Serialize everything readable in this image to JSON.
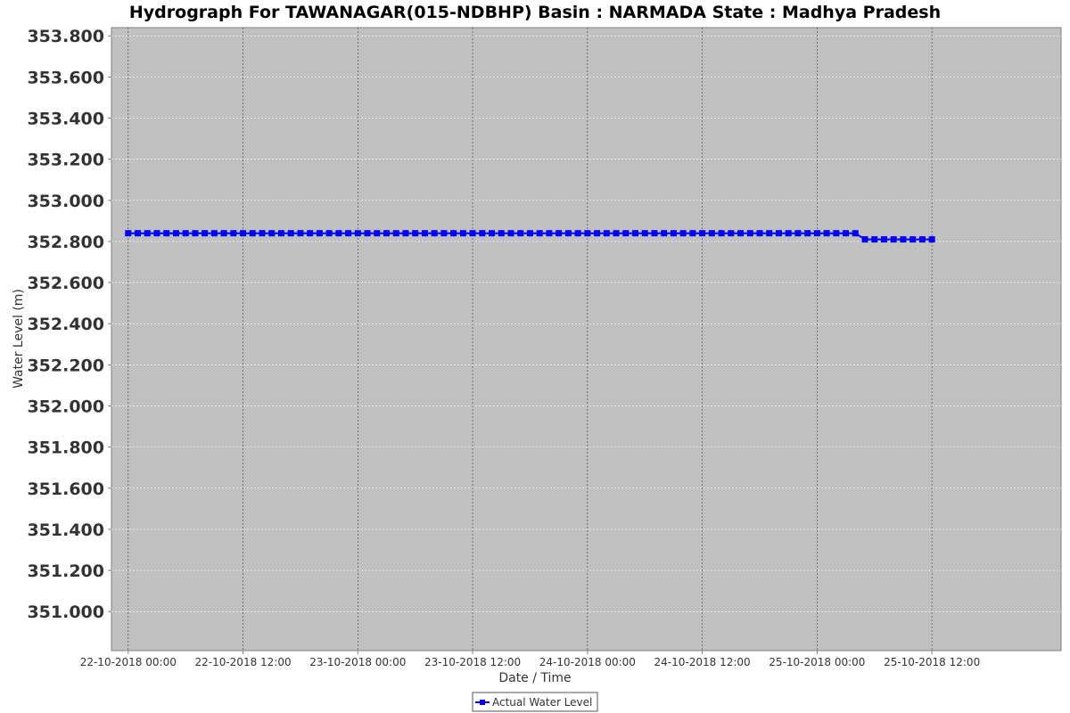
{
  "chart_data": {
    "type": "line",
    "title": "Hydrograph For TAWANAGAR(015-NDBHP) Basin : NARMADA State : Madhya Pradesh",
    "xlabel": "Date / Time",
    "ylabel": "Water Level (m)",
    "y_ticks": [
      "353.800",
      "353.600",
      "353.400",
      "353.200",
      "353.000",
      "352.800",
      "352.600",
      "352.400",
      "352.200",
      "352.000",
      "351.800",
      "351.600",
      "351.400",
      "351.200",
      "351.000"
    ],
    "x_ticks": [
      "22-10-2018 00:00",
      "22-10-2018 12:00",
      "23-10-2018 00:00",
      "23-10-2018 12:00",
      "24-10-2018 00:00",
      "24-10-2018 12:00",
      "25-10-2018 00:00",
      "25-10-2018 12:00"
    ],
    "ylim": [
      350.81,
      353.84
    ],
    "xlim": [
      "21-10-2018 22:15",
      "26-10-2018 01:30"
    ],
    "grid": true,
    "legend_position": "bottom",
    "series": [
      {
        "name": "Actual Water Level",
        "color": "#0000ff",
        "marker": "square",
        "x_start": "22-10-2018 00:00",
        "x_end": "25-10-2018 12:00",
        "interval_hours": 1,
        "values": [
          352.84,
          352.84,
          352.84,
          352.84,
          352.84,
          352.84,
          352.84,
          352.84,
          352.84,
          352.84,
          352.84,
          352.84,
          352.84,
          352.84,
          352.84,
          352.84,
          352.84,
          352.84,
          352.84,
          352.84,
          352.84,
          352.84,
          352.84,
          352.84,
          352.84,
          352.84,
          352.84,
          352.84,
          352.84,
          352.84,
          352.84,
          352.84,
          352.84,
          352.84,
          352.84,
          352.84,
          352.84,
          352.84,
          352.84,
          352.84,
          352.84,
          352.84,
          352.84,
          352.84,
          352.84,
          352.84,
          352.84,
          352.84,
          352.84,
          352.84,
          352.84,
          352.84,
          352.84,
          352.84,
          352.84,
          352.84,
          352.84,
          352.84,
          352.84,
          352.84,
          352.84,
          352.84,
          352.84,
          352.84,
          352.84,
          352.84,
          352.84,
          352.84,
          352.84,
          352.84,
          352.84,
          352.84,
          352.84,
          352.84,
          352.84,
          352.84,
          352.84,
          352.81,
          352.81,
          352.81,
          352.81,
          352.81,
          352.81,
          352.81,
          352.81
        ]
      }
    ],
    "colors": {
      "plot_background": "#c0c0c0",
      "gridline": "#ffffff",
      "domain_gridline": "#404040"
    }
  }
}
